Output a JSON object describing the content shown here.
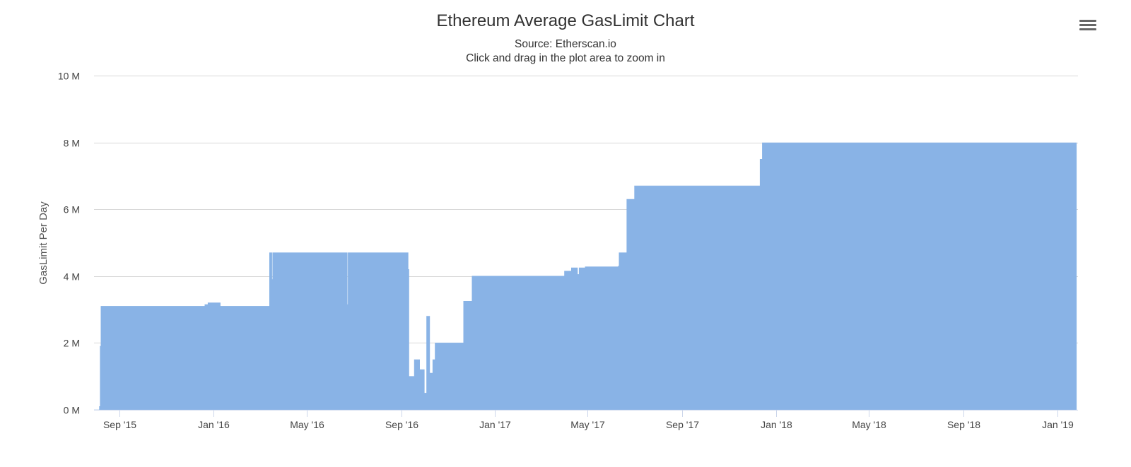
{
  "chart_data": {
    "type": "area",
    "title": "Ethereum Average GasLimit Chart",
    "subtitle_lines": [
      "Source: Etherscan.io",
      "Click and drag in the plot area to zoom in"
    ],
    "xlabel": "",
    "ylabel": "GasLimit Per Day",
    "ylim": [
      0,
      10000000
    ],
    "xlim": [
      "2015-07-30",
      "2019-01-28"
    ],
    "y_ticks": [
      0,
      2000000,
      4000000,
      6000000,
      8000000,
      10000000
    ],
    "y_tick_labels": [
      "0 M",
      "2 M",
      "4 M",
      "6 M",
      "8 M",
      "10 M"
    ],
    "x_ticks": [
      "2015-09-01",
      "2016-01-01",
      "2016-05-01",
      "2016-09-01",
      "2017-01-01",
      "2017-05-01",
      "2017-09-01",
      "2018-01-01",
      "2018-05-01",
      "2018-09-01",
      "2019-01-01"
    ],
    "x_tick_labels": [
      "Sep '15",
      "Jan '16",
      "May '16",
      "Sep '16",
      "Jan '17",
      "May '17",
      "Sep '17",
      "Jan '18",
      "May '18",
      "Sep '18",
      "Jan '19"
    ],
    "grid": true,
    "legend": "none",
    "color": "#89b3e6",
    "series": [
      {
        "name": "GasLimit Per Day",
        "x": [
          "2015-07-30",
          "2015-08-06",
          "2015-08-07",
          "2015-08-08",
          "2015-12-20",
          "2015-12-21",
          "2015-12-25",
          "2016-01-10",
          "2016-03-13",
          "2016-03-14",
          "2016-03-17",
          "2016-03-18",
          "2016-06-22",
          "2016-06-23",
          "2016-06-24",
          "2016-09-04",
          "2016-09-10",
          "2016-09-11",
          "2016-09-18",
          "2016-09-19",
          "2016-09-25",
          "2016-10-01",
          "2016-10-04",
          "2016-10-08",
          "2016-10-12",
          "2016-10-15",
          "2016-10-17",
          "2016-10-18",
          "2016-11-20",
          "2016-11-21",
          "2016-12-01",
          "2016-12-02",
          "2017-03-20",
          "2017-04-01",
          "2017-04-10",
          "2017-04-18",
          "2017-04-20",
          "2017-04-28",
          "2017-06-10",
          "2017-06-11",
          "2017-06-20",
          "2017-06-21",
          "2017-07-01",
          "2017-12-09",
          "2017-12-11",
          "2017-12-14",
          "2019-01-26"
        ],
        "y": [
          0,
          100000,
          1900000,
          3100000,
          3100000,
          3150000,
          3200000,
          3100000,
          3100000,
          4700000,
          3900000,
          4700000,
          4700000,
          3150000,
          4700000,
          4700000,
          4200000,
          1000000,
          1500000,
          1500000,
          1200000,
          500000,
          2800000,
          1100000,
          1500000,
          2000000,
          2000000,
          2000000,
          2000000,
          3250000,
          3250000,
          4000000,
          4000000,
          4150000,
          4250000,
          4050000,
          4250000,
          4280000,
          4300000,
          4700000,
          4700000,
          6300000,
          6700000,
          6700000,
          7500000,
          7990000,
          7990000
        ]
      }
    ]
  },
  "ui": {
    "menu_icon": "hamburger-menu-icon"
  }
}
